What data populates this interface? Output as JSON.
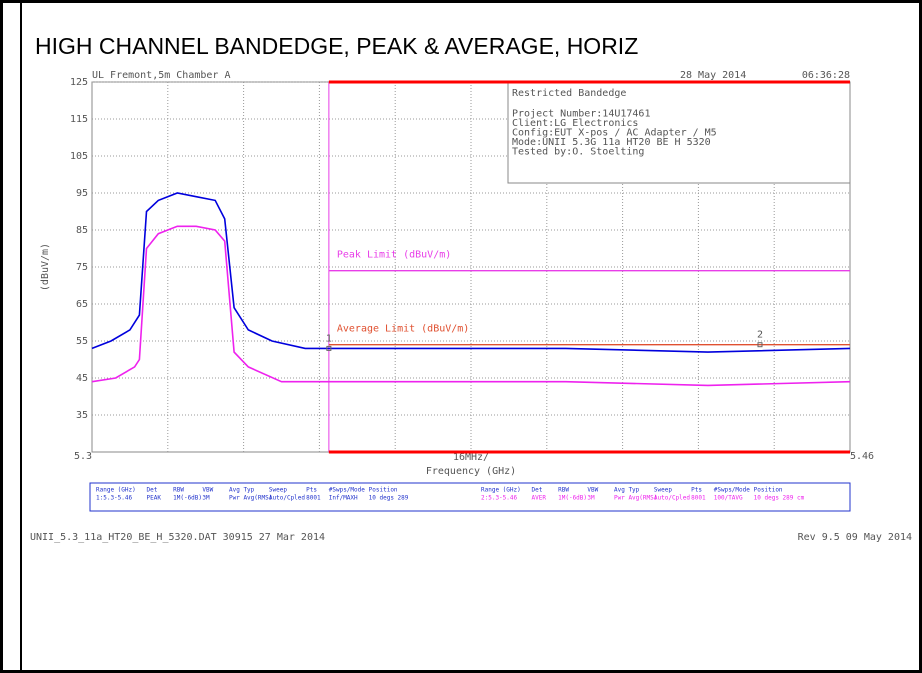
{
  "chart_data": {
    "type": "line",
    "title": "HIGH CHANNEL BANDEDGE, PEAK & AVERAGE, HORIZ",
    "header_left": "UL Fremont,5m Chamber A",
    "header_date": "28 May 2014",
    "header_time": "06:36:28",
    "info_box": [
      "Restricted Bandedge",
      "Project Number:14U17461",
      "Client:LG Electronics",
      "Config:EUT X-pos / AC Adapter / M5",
      "Mode:UNII 5.3G 11a HT20 BE H 5320",
      "Tested by:O. Stoelting"
    ],
    "y_label": "(dBuV/m)",
    "x_label": "Frequency (GHz)",
    "x_div_label": "16MHz/",
    "xlim": [
      5.3,
      5.46
    ],
    "xticks": [
      5.3,
      5.46
    ],
    "x_divisions": 10,
    "ylim": [
      25,
      125
    ],
    "yticks": [
      35,
      45,
      55,
      65,
      75,
      85,
      95,
      105,
      115,
      125
    ],
    "grid": true,
    "restricted_band_start": 5.35,
    "restricted_band_color": "#ff0000",
    "limits": [
      {
        "name": "Peak Limit (dBuV/m)",
        "value": 74,
        "color": "#e83ee8"
      },
      {
        "name": "Average Limit (dBuV/m)",
        "value": 54,
        "color": "#e05030"
      }
    ],
    "series": [
      {
        "name": "Peak",
        "color": "#0000dd",
        "x": [
          5.3,
          5.304,
          5.308,
          5.31,
          5.3115,
          5.314,
          5.318,
          5.322,
          5.326,
          5.328,
          5.33,
          5.333,
          5.338,
          5.345,
          5.4,
          5.43,
          5.46
        ],
        "values": [
          53,
          55,
          58,
          62,
          90,
          93,
          95,
          94,
          93,
          88,
          64,
          58,
          55,
          53,
          53,
          52,
          53
        ]
      },
      {
        "name": "Average",
        "color": "#ee22ee",
        "x": [
          5.3,
          5.305,
          5.309,
          5.31,
          5.3115,
          5.314,
          5.318,
          5.322,
          5.326,
          5.328,
          5.33,
          5.333,
          5.34,
          5.4,
          5.43,
          5.46
        ],
        "values": [
          44,
          45,
          48,
          50,
          80,
          84,
          86,
          86,
          85,
          82,
          52,
          48,
          44,
          44,
          43,
          44
        ]
      }
    ],
    "markers": [
      {
        "label": "1",
        "x": 5.35,
        "y": 53
      },
      {
        "label": "2",
        "x": 5.441,
        "y": 54
      }
    ],
    "settings_header": [
      "Range (GHz)",
      "Det",
      "RBW",
      "VBW",
      "Avg Typ",
      "Sweep",
      "Pts",
      "#Swps/Mode",
      "Position"
    ],
    "settings_rows": [
      [
        "1:5.3-5.46",
        "PEAK",
        "1M(-6dB)",
        "3M",
        "Pwr Avg(RMS)",
        "Auto/Cpled",
        "8001",
        "Inf/MAXH",
        "10 degs 289"
      ],
      [
        "2:5.3-5.46",
        "AVER",
        "1M(-6dB)",
        "3M",
        "Pwr Avg(RMS)",
        "Auto/Cpled",
        "8001",
        "100/TAVG",
        "10 degs 289 cm"
      ]
    ],
    "footer_left": "UNII_5.3_11a_HT20_BE_H_5320.DAT 30915 27 Mar 2014",
    "footer_right": "Rev 9.5 09 May 2014"
  }
}
